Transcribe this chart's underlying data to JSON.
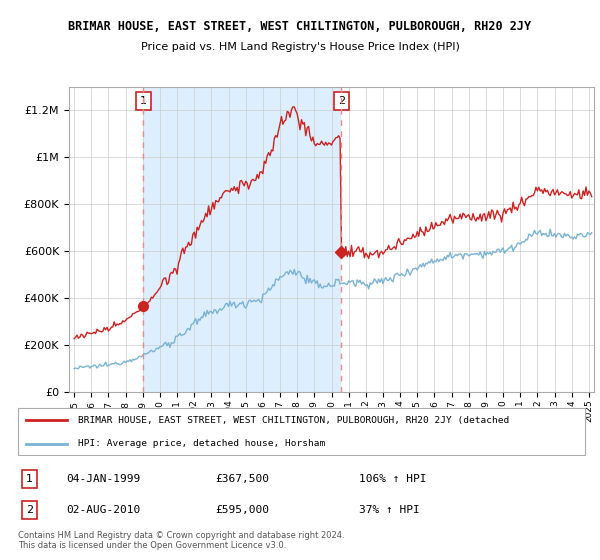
{
  "title": "BRIMAR HOUSE, EAST STREET, WEST CHILTINGTON, PULBOROUGH, RH20 2JY",
  "subtitle": "Price paid vs. HM Land Registry's House Price Index (HPI)",
  "ylim": [
    0,
    1300000
  ],
  "yticks": [
    0,
    200000,
    400000,
    600000,
    800000,
    1000000,
    1200000
  ],
  "ytick_labels": [
    "£0",
    "£200K",
    "£400K",
    "£600K",
    "£800K",
    "£1M",
    "£1.2M"
  ],
  "hpi_color": "#7ab3d4",
  "price_color": "#cc2222",
  "dashed_color": "#ee8888",
  "transaction1_x": 1999.02,
  "transaction1_y": 367500,
  "transaction1_label": "04-JAN-1999",
  "transaction1_price": "£367,500",
  "transaction1_hpi": "106% ↑ HPI",
  "transaction2_x": 2010.58,
  "transaction2_y": 595000,
  "transaction2_label": "02-AUG-2010",
  "transaction2_price": "£595,000",
  "transaction2_hpi": "37% ↑ HPI",
  "legend_line1": "BRIMAR HOUSE, EAST STREET, WEST CHILTINGTON, PULBOROUGH, RH20 2JY (detached",
  "legend_line2": "HPI: Average price, detached house, Horsham",
  "footnote": "Contains HM Land Registry data © Crown copyright and database right 2024.\nThis data is licensed under the Open Government Licence v3.0.",
  "xlim_start": 1994.7,
  "xlim_end": 2025.3,
  "shading_color": "#ddeeff"
}
